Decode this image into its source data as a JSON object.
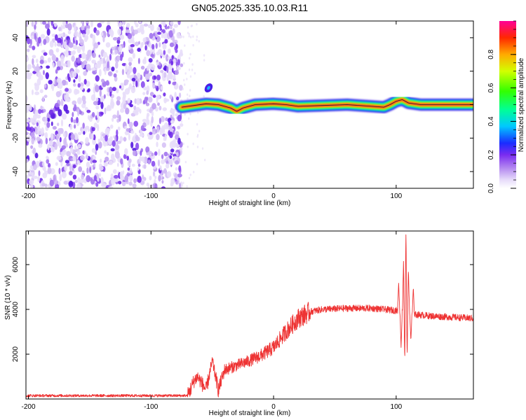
{
  "title": "GN05.2025.335.10.03.R11",
  "chart_data": [
    {
      "type": "heatmap",
      "name": "spectrogram",
      "xlabel": "Height of straight line (km)",
      "ylabel": "Frequency (Hz)",
      "xlim": [
        -202,
        163
      ],
      "ylim": [
        -50,
        50
      ],
      "x_ticks": [
        -200,
        -100,
        0,
        100
      ],
      "y_ticks": [
        -40,
        -20,
        0,
        20,
        40
      ],
      "noise_region_x": [
        -202,
        -75
      ],
      "signal_track": [
        {
          "x": -75,
          "y": -1.5
        },
        {
          "x": -65,
          "y": -0.5
        },
        {
          "x": -55,
          "y": 0.5
        },
        {
          "x": -45,
          "y": 0
        },
        {
          "x": -35,
          "y": -2
        },
        {
          "x": -30,
          "y": -4
        },
        {
          "x": -25,
          "y": -2
        },
        {
          "x": -15,
          "y": 0
        },
        {
          "x": 0,
          "y": 0.5
        },
        {
          "x": 10,
          "y": 0
        },
        {
          "x": 20,
          "y": -1
        },
        {
          "x": 40,
          "y": -0.5
        },
        {
          "x": 60,
          "y": 0
        },
        {
          "x": 80,
          "y": -1
        },
        {
          "x": 90,
          "y": -1.5
        },
        {
          "x": 95,
          "y": 0
        },
        {
          "x": 100,
          "y": 2
        },
        {
          "x": 105,
          "y": 3
        },
        {
          "x": 110,
          "y": 1
        },
        {
          "x": 120,
          "y": 0
        },
        {
          "x": 163,
          "y": 0
        }
      ],
      "outlier_blob": {
        "x": -53,
        "y": 10,
        "amplitude": 0.2
      },
      "colorbar": {
        "label": "Normalized spectral amplitude",
        "range": [
          0,
          1
        ],
        "ticks": [
          "0.0",
          "0.2",
          "0.4",
          "0.6",
          "0.8"
        ],
        "tick_values": [
          0,
          0.2,
          0.4,
          0.6,
          0.8
        ]
      }
    },
    {
      "type": "line",
      "name": "snr",
      "xlabel": "Height of straight line (km)",
      "ylabel": "SNR (10 * v/v)",
      "xlim": [
        -202,
        163
      ],
      "ylim": [
        0,
        7500
      ],
      "x_ticks": [
        -200,
        -100,
        0,
        100
      ],
      "y_ticks": [
        2000,
        4000,
        6000
      ],
      "color": "#ee3333",
      "envelope": [
        {
          "x": -202,
          "y": 150
        },
        {
          "x": -70,
          "y": 150
        },
        {
          "x": -65,
          "y": 800
        },
        {
          "x": -62,
          "y": 1000
        },
        {
          "x": -55,
          "y": 400
        },
        {
          "x": -50,
          "y": 1700
        },
        {
          "x": -45,
          "y": 400
        },
        {
          "x": -40,
          "y": 1300
        },
        {
          "x": -30,
          "y": 1500
        },
        {
          "x": -20,
          "y": 1700
        },
        {
          "x": -10,
          "y": 1950
        },
        {
          "x": 0,
          "y": 2300
        },
        {
          "x": 10,
          "y": 3000
        },
        {
          "x": 20,
          "y": 3600
        },
        {
          "x": 30,
          "y": 3900
        },
        {
          "x": 40,
          "y": 4000
        },
        {
          "x": 60,
          "y": 4050
        },
        {
          "x": 80,
          "y": 4050
        },
        {
          "x": 100,
          "y": 3950
        },
        {
          "x": 110,
          "y": 3800
        },
        {
          "x": 130,
          "y": 3700
        },
        {
          "x": 163,
          "y": 3600
        }
      ],
      "spikes": [
        {
          "x": 102,
          "y": 5200
        },
        {
          "x": 104,
          "y": 2300
        },
        {
          "x": 106,
          "y": 6200
        },
        {
          "x": 107,
          "y": 1800
        },
        {
          "x": 108,
          "y": 7500
        },
        {
          "x": 109,
          "y": 2000
        },
        {
          "x": 110,
          "y": 5800
        },
        {
          "x": 112,
          "y": 2600
        },
        {
          "x": 114,
          "y": 5000
        }
      ]
    }
  ]
}
